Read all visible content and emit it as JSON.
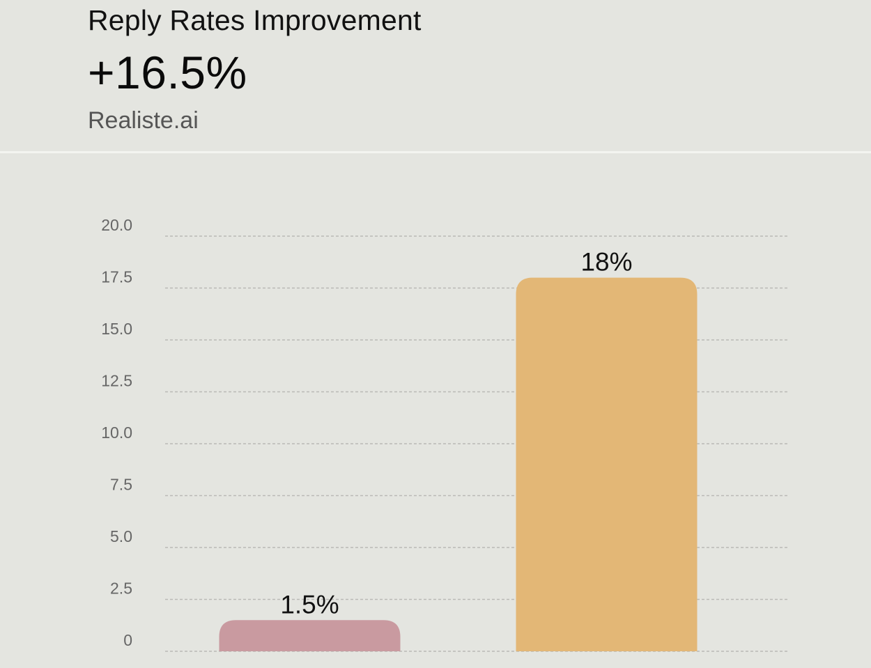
{
  "header": {
    "title": "Reply Rates Improvement",
    "metric": "+16.5%",
    "source": "Realiste.ai"
  },
  "colors": {
    "background": "#e4e5e0",
    "gridline": "#b9b9b5",
    "tick_text": "#666666",
    "label_text": "#111111"
  },
  "chart_data": {
    "type": "bar",
    "categories": [
      "",
      ""
    ],
    "values": [
      1.5,
      18
    ],
    "data_labels": [
      "1.5%",
      "18%"
    ],
    "bar_colors": [
      "#c99aa0",
      "#e3b776"
    ],
    "ylim": [
      0,
      20
    ],
    "yticks": [
      0,
      2.5,
      5,
      7.5,
      10,
      12.5,
      15,
      17.5,
      20
    ],
    "ytick_labels": [
      "0",
      "2.5",
      "5.0",
      "7.5",
      "10.0",
      "12.5",
      "15.0",
      "17.5",
      "20.0"
    ],
    "grid": true,
    "grid_style": "dashed",
    "title": "",
    "xlabel": "",
    "ylabel": ""
  }
}
